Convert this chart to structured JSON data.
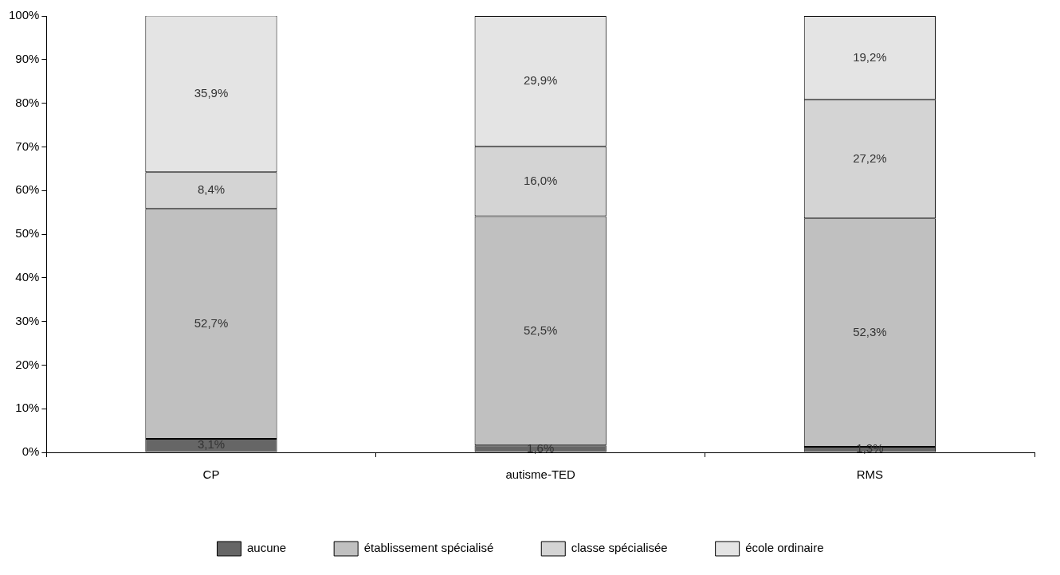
{
  "chart_data": {
    "type": "bar",
    "stacked": true,
    "categories": [
      "CP",
      "autisme-TED",
      "RMS"
    ],
    "series": [
      {
        "name": "aucune",
        "color": "#666666",
        "values": [
          3.1,
          1.6,
          1.3
        ],
        "value_labels": [
          "3,1%",
          "1,6%",
          "1,3%"
        ]
      },
      {
        "name": "établissement spécialisé",
        "color": "#c0c0c0",
        "values": [
          52.7,
          52.5,
          52.3
        ],
        "value_labels": [
          "52,7%",
          "52,5%",
          "52,3%"
        ]
      },
      {
        "name": "classe spécialisée",
        "color": "#d4d4d4",
        "values": [
          8.4,
          16.0,
          27.2
        ],
        "value_labels": [
          "8,4%",
          "16,0%",
          "27,2%"
        ]
      },
      {
        "name": "école ordinaire",
        "color": "#e4e4e4",
        "values": [
          35.9,
          29.9,
          19.2
        ],
        "value_labels": [
          "35,9%",
          "29,9%",
          "19,2%"
        ]
      }
    ],
    "ylim": [
      0,
      100
    ],
    "yticks": [
      {
        "value": 0,
        "label": "0%"
      },
      {
        "value": 10,
        "label": "10%"
      },
      {
        "value": 20,
        "label": "20%"
      },
      {
        "value": 30,
        "label": "30%"
      },
      {
        "value": 40,
        "label": "40%"
      },
      {
        "value": 50,
        "label": "50%"
      },
      {
        "value": 60,
        "label": "60%"
      },
      {
        "value": 70,
        "label": "70%"
      },
      {
        "value": 80,
        "label": "80%"
      },
      {
        "value": 90,
        "label": "90%"
      },
      {
        "value": 100,
        "label": "100%"
      }
    ],
    "grid": false,
    "legend": "bottom"
  }
}
